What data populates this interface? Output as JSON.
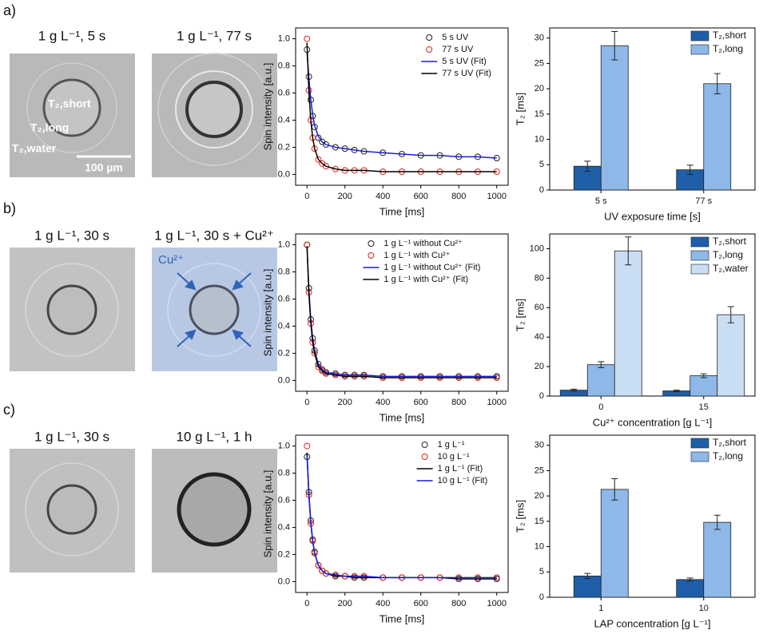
{
  "panels": [
    {
      "label": "a)",
      "images": [
        {
          "caption": "1 g L⁻¹, 5 s",
          "annotations": [
            "T₂,short",
            "T₂,long",
            "T₂,water",
            "100 µm"
          ]
        },
        {
          "caption": "1 g L⁻¹, 77 s"
        }
      ]
    },
    {
      "label": "b)",
      "images": [
        {
          "caption": "1 g L⁻¹, 30 s"
        },
        {
          "caption": "1 g L⁻¹, 30 s + Cu²⁺",
          "annotations": [
            "Cu²⁺"
          ]
        }
      ]
    },
    {
      "label": "c)",
      "images": [
        {
          "caption": "1 g L⁻¹, 30 s"
        },
        {
          "caption": "10 g L⁻¹, 1 h"
        }
      ]
    }
  ],
  "chart_data": [
    {
      "type": "line",
      "x_label": "Time [ms]",
      "y_label": "Spin intensity [a.u.]",
      "legend": "upper right",
      "x": [
        0,
        10,
        20,
        30,
        40,
        60,
        80,
        100,
        150,
        200,
        250,
        300,
        400,
        500,
        600,
        700,
        800,
        900,
        1000
      ],
      "series": [
        {
          "name": "5 s UV",
          "color": "#222222",
          "style": "scatter",
          "values": [
            0.92,
            0.72,
            0.55,
            0.43,
            0.35,
            0.27,
            0.24,
            0.22,
            0.2,
            0.19,
            0.18,
            0.17,
            0.16,
            0.15,
            0.14,
            0.14,
            0.13,
            0.13,
            0.12
          ]
        },
        {
          "name": "77 s UV",
          "color": "#e0201b",
          "style": "scatter",
          "values": [
            1.0,
            0.62,
            0.4,
            0.27,
            0.19,
            0.11,
            0.08,
            0.06,
            0.04,
            0.03,
            0.03,
            0.03,
            0.02,
            0.02,
            0.02,
            0.02,
            0.02,
            0.02,
            0.02
          ]
        },
        {
          "name": "5 s UV (Fit)",
          "color": "#1c1cd6",
          "style": "line",
          "values": [
            0.9,
            0.71,
            0.55,
            0.44,
            0.36,
            0.28,
            0.24,
            0.22,
            0.2,
            0.19,
            0.18,
            0.17,
            0.16,
            0.15,
            0.14,
            0.14,
            0.13,
            0.13,
            0.12
          ]
        },
        {
          "name": "77 s UV (Fit)",
          "color": "#000000",
          "style": "line",
          "values": [
            0.97,
            0.61,
            0.4,
            0.27,
            0.19,
            0.11,
            0.08,
            0.06,
            0.04,
            0.03,
            0.03,
            0.03,
            0.02,
            0.02,
            0.02,
            0.02,
            0.02,
            0.02,
            0.02
          ]
        }
      ],
      "xlim": [
        -60,
        1060
      ],
      "ylim": [
        -0.08,
        1.08
      ],
      "xticks": [
        0,
        200,
        400,
        600,
        800,
        1000
      ],
      "yticks": [
        {
          "value": 0,
          "label": "0.0"
        },
        {
          "value": 0.2,
          "label": "0.2"
        },
        {
          "value": 0.4,
          "label": "0.4"
        },
        {
          "value": 0.6,
          "label": "0.6"
        },
        {
          "value": 0.8,
          "label": "0.8"
        },
        {
          "value": 1,
          "label": "1.0"
        }
      ]
    },
    {
      "type": "bar",
      "x_label": "UV exposure time [s]",
      "y_label": "T₂ [ms]",
      "legend": "upper right",
      "categories": [
        "5 s",
        "77 s"
      ],
      "series": [
        {
          "name": "T₂,short",
          "color": "#1f5ea8",
          "values": [
            4.7,
            4.0
          ],
          "errors": [
            1.0,
            0.9
          ]
        },
        {
          "name": "T₂,long",
          "color": "#8db8e8",
          "values": [
            28.5,
            21.0
          ],
          "errors": [
            2.8,
            2.0
          ]
        }
      ],
      "ylim": [
        0,
        32
      ],
      "yticks": [
        0,
        5,
        10,
        15,
        20,
        25,
        30
      ]
    },
    {
      "type": "line",
      "x_label": "Time [ms]",
      "y_label": "Spin intensity [a.u.]",
      "legend": "upper right",
      "x": [
        0,
        10,
        20,
        30,
        40,
        60,
        80,
        100,
        150,
        200,
        250,
        300,
        400,
        500,
        600,
        700,
        800,
        900,
        1000
      ],
      "series": [
        {
          "name": "1 g L⁻¹ without Cu²⁺",
          "color": "#222222",
          "style": "scatter",
          "values": [
            1.0,
            0.68,
            0.45,
            0.31,
            0.22,
            0.12,
            0.08,
            0.06,
            0.05,
            0.04,
            0.04,
            0.04,
            0.03,
            0.03,
            0.03,
            0.03,
            0.03,
            0.03,
            0.03
          ]
        },
        {
          "name": "1 g L⁻¹ with Cu²⁺",
          "color": "#e0201b",
          "style": "scatter",
          "values": [
            1.0,
            0.65,
            0.42,
            0.28,
            0.2,
            0.1,
            0.07,
            0.05,
            0.04,
            0.03,
            0.03,
            0.03,
            0.02,
            0.02,
            0.02,
            0.02,
            0.02,
            0.02,
            0.02
          ]
        },
        {
          "name": "1 g L⁻¹ without Cu²⁺ (Fit)",
          "color": "#1c1cd6",
          "style": "line",
          "values": [
            0.99,
            0.67,
            0.45,
            0.31,
            0.22,
            0.12,
            0.08,
            0.06,
            0.05,
            0.04,
            0.04,
            0.04,
            0.03,
            0.03,
            0.03,
            0.03,
            0.03,
            0.03,
            0.03
          ]
        },
        {
          "name": "1 g L⁻¹ with Cu²⁺ (Fit)",
          "color": "#000000",
          "style": "line",
          "values": [
            0.99,
            0.64,
            0.42,
            0.28,
            0.2,
            0.1,
            0.07,
            0.05,
            0.04,
            0.03,
            0.03,
            0.03,
            0.02,
            0.02,
            0.02,
            0.02,
            0.02,
            0.02,
            0.02
          ]
        }
      ],
      "xlim": [
        -60,
        1060
      ],
      "ylim": [
        -0.08,
        1.08
      ],
      "xticks": [
        0,
        200,
        400,
        600,
        800,
        1000
      ],
      "yticks": [
        {
          "value": 0,
          "label": "0.0"
        },
        {
          "value": 0.2,
          "label": "0.2"
        },
        {
          "value": 0.4,
          "label": "0.4"
        },
        {
          "value": 0.6,
          "label": "0.6"
        },
        {
          "value": 0.8,
          "label": "0.8"
        },
        {
          "value": 1,
          "label": "1.0"
        }
      ]
    },
    {
      "type": "bar",
      "x_label": "Cu²⁺ concentration [g L⁻¹]",
      "y_label": "T₂ [ms]",
      "legend": "upper right",
      "categories": [
        "0",
        "15"
      ],
      "series": [
        {
          "name": "T₂,short",
          "color": "#1f5ea8",
          "values": [
            4.0,
            3.5
          ],
          "errors": [
            0.7,
            0.5
          ]
        },
        {
          "name": "T₂,long",
          "color": "#8db8e8",
          "values": [
            21.3,
            13.8
          ],
          "errors": [
            2.0,
            1.3
          ]
        },
        {
          "name": "T₂,water",
          "color": "#c9ddf3",
          "values": [
            98.5,
            55.2
          ],
          "errors": [
            9.5,
            5.5
          ]
        }
      ],
      "ylim": [
        0,
        110
      ],
      "yticks": [
        0,
        20,
        40,
        60,
        80,
        100
      ]
    },
    {
      "type": "line",
      "x_label": "Time [ms]",
      "y_label": "Spin intensity [a.u.]",
      "legend": "upper right",
      "x": [
        0,
        10,
        20,
        30,
        40,
        60,
        80,
        100,
        150,
        200,
        250,
        300,
        400,
        500,
        600,
        700,
        800,
        900,
        1000
      ],
      "series": [
        {
          "name": "1 g L⁻¹",
          "color": "#222222",
          "style": "scatter",
          "values": [
            0.92,
            0.66,
            0.45,
            0.31,
            0.22,
            0.12,
            0.08,
            0.06,
            0.04,
            0.04,
            0.03,
            0.03,
            0.03,
            0.03,
            0.03,
            0.03,
            0.02,
            0.02,
            0.02
          ]
        },
        {
          "name": "10 g L⁻¹",
          "color": "#e0201b",
          "style": "scatter",
          "values": [
            1.0,
            0.64,
            0.43,
            0.3,
            0.21,
            0.12,
            0.08,
            0.06,
            0.05,
            0.04,
            0.04,
            0.04,
            0.03,
            0.03,
            0.03,
            0.03,
            0.03,
            0.03,
            0.03
          ]
        },
        {
          "name": "1 g L⁻¹ (Fit)",
          "color": "#000000",
          "style": "line",
          "values": [
            0.95,
            0.65,
            0.44,
            0.3,
            0.21,
            0.12,
            0.08,
            0.06,
            0.04,
            0.04,
            0.03,
            0.03,
            0.03,
            0.03,
            0.03,
            0.03,
            0.02,
            0.02,
            0.02
          ]
        },
        {
          "name": "10 g L⁻¹ (Fit)",
          "color": "#1c1cd6",
          "style": "line",
          "values": [
            0.93,
            0.63,
            0.43,
            0.3,
            0.21,
            0.12,
            0.08,
            0.06,
            0.05,
            0.04,
            0.04,
            0.04,
            0.03,
            0.03,
            0.03,
            0.03,
            0.03,
            0.03,
            0.03
          ]
        }
      ],
      "xlim": [
        -60,
        1060
      ],
      "ylim": [
        -0.08,
        1.08
      ],
      "xticks": [
        0,
        200,
        400,
        600,
        800,
        1000
      ],
      "yticks": [
        {
          "value": 0,
          "label": "0.0"
        },
        {
          "value": 0.2,
          "label": "0.2"
        },
        {
          "value": 0.4,
          "label": "0.4"
        },
        {
          "value": 0.6,
          "label": "0.6"
        },
        {
          "value": 0.8,
          "label": "0.8"
        },
        {
          "value": 1,
          "label": "1.0"
        }
      ]
    },
    {
      "type": "bar",
      "x_label": "LAP concentration [g L⁻¹]",
      "y_label": "T₂ [ms]",
      "legend": "upper right",
      "categories": [
        "1",
        "10"
      ],
      "series": [
        {
          "name": "T₂,short",
          "color": "#1f5ea8",
          "values": [
            4.2,
            3.5
          ],
          "errors": [
            0.5,
            0.3
          ]
        },
        {
          "name": "T₂,long",
          "color": "#8db8e8",
          "values": [
            21.3,
            14.8
          ],
          "errors": [
            2.1,
            1.4
          ]
        }
      ],
      "ylim": [
        0,
        32
      ],
      "yticks": [
        0,
        5,
        10,
        15,
        20,
        25,
        30
      ]
    }
  ]
}
